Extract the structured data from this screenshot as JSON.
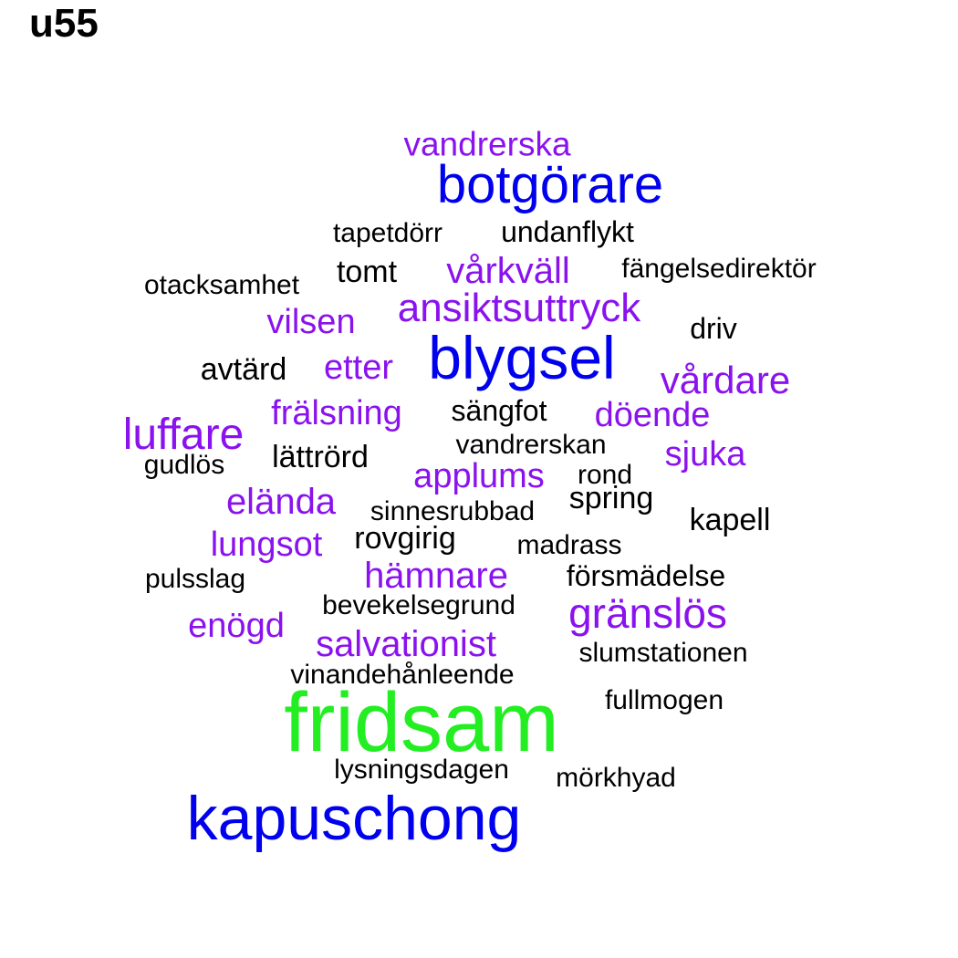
{
  "title": "u55",
  "colors": {
    "green": "#22ee22",
    "blue": "#0000ee",
    "purple": "#8a12ee",
    "black": "#000000"
  },
  "words": [
    {
      "text": "fridsam",
      "color": "green"
    },
    {
      "text": "kapuschong",
      "color": "blue"
    },
    {
      "text": "blygsel",
      "color": "blue"
    },
    {
      "text": "botgörare",
      "color": "blue"
    },
    {
      "text": "vandrerska",
      "color": "purple"
    },
    {
      "text": "ansiktsuttryck",
      "color": "purple"
    },
    {
      "text": "vårkväll",
      "color": "purple"
    },
    {
      "text": "vårdare",
      "color": "purple"
    },
    {
      "text": "luffare",
      "color": "purple"
    },
    {
      "text": "gränslös",
      "color": "purple"
    },
    {
      "text": "vilsen",
      "color": "purple"
    },
    {
      "text": "etter",
      "color": "purple"
    },
    {
      "text": "frälsning",
      "color": "purple"
    },
    {
      "text": "döende",
      "color": "purple"
    },
    {
      "text": "sjuka",
      "color": "purple"
    },
    {
      "text": "applums",
      "color": "purple"
    },
    {
      "text": "elända",
      "color": "purple"
    },
    {
      "text": "lungsot",
      "color": "purple"
    },
    {
      "text": "hämnare",
      "color": "purple"
    },
    {
      "text": "enögd",
      "color": "purple"
    },
    {
      "text": "salvationist",
      "color": "purple"
    },
    {
      "text": "tapetdörr",
      "color": "black"
    },
    {
      "text": "undanflykt",
      "color": "black"
    },
    {
      "text": "otacksamhet",
      "color": "black"
    },
    {
      "text": "tomt",
      "color": "black"
    },
    {
      "text": "fängelsedirektör",
      "color": "black"
    },
    {
      "text": "driv",
      "color": "black"
    },
    {
      "text": "avtärd",
      "color": "black"
    },
    {
      "text": "sängfot",
      "color": "black"
    },
    {
      "text": "vandrerskan",
      "color": "black"
    },
    {
      "text": "lättrörd",
      "color": "black"
    },
    {
      "text": "gudlös",
      "color": "black"
    },
    {
      "text": "rond",
      "color": "black"
    },
    {
      "text": "spring",
      "color": "black"
    },
    {
      "text": "sinnesrubbad",
      "color": "black"
    },
    {
      "text": "kapell",
      "color": "black"
    },
    {
      "text": "rovgirig",
      "color": "black"
    },
    {
      "text": "madrass",
      "color": "black"
    },
    {
      "text": "pulsslag",
      "color": "black"
    },
    {
      "text": "försmädelse",
      "color": "black"
    },
    {
      "text": "bevekelsegrund",
      "color": "black"
    },
    {
      "text": "slumstationen",
      "color": "black"
    },
    {
      "text": "vinandehånleende",
      "color": "black"
    },
    {
      "text": "fullmogen",
      "color": "black"
    },
    {
      "text": "lysningsdagen",
      "color": "black"
    },
    {
      "text": "mörkhyad",
      "color": "black"
    }
  ]
}
